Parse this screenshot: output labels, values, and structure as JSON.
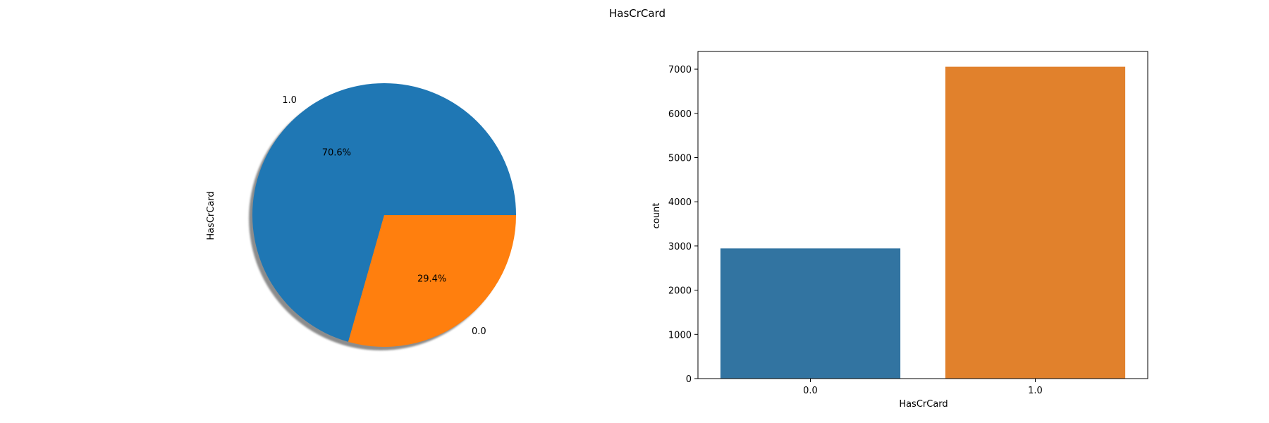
{
  "figure": {
    "title": "HasCrCard"
  },
  "chart_data": [
    {
      "type": "pie",
      "ylabel": "HasCrCard",
      "labels": [
        "1.0",
        "0.0"
      ],
      "values": [
        70.6,
        29.4
      ],
      "pct_labels": [
        "70.6%",
        "29.4%"
      ],
      "colors": [
        "#1f77b4",
        "#ff7f0e"
      ],
      "shadow": true
    },
    {
      "type": "bar",
      "xlabel": "HasCrCard",
      "ylabel": "count",
      "categories": [
        "0.0",
        "1.0"
      ],
      "values": [
        2945,
        7055
      ],
      "colors": [
        "#3274a1",
        "#e1812c"
      ],
      "ylim": [
        0,
        7400
      ],
      "yticks": [
        0,
        1000,
        2000,
        3000,
        4000,
        5000,
        6000,
        7000
      ]
    }
  ]
}
